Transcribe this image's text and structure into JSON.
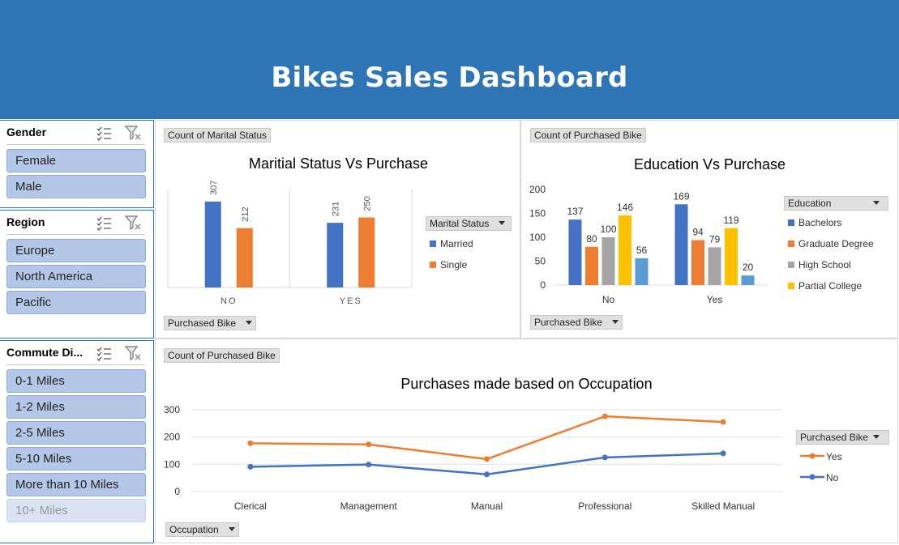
{
  "dashboard": {
    "title": "Bikes Sales Dashboard"
  },
  "slicers": {
    "gender": {
      "label": "Gender",
      "items": [
        "Female",
        "Male"
      ]
    },
    "region": {
      "label": "Region",
      "items": [
        "Europe",
        "North America",
        "Pacific"
      ]
    },
    "commute": {
      "label": "Commute Di...",
      "items": [
        "0-1 Miles",
        "1-2 Miles",
        "2-5 Miles",
        "5-10 Miles",
        "More than 10 Miles",
        "10+ Miles"
      ]
    }
  },
  "colors": {
    "banner": "#2e75b6",
    "married": "#4472c4",
    "single": "#ed7d31",
    "bachelors": "#4472c4",
    "graduate": "#ed7d31",
    "highschool": "#a5a5a5",
    "partial": "#ffc000",
    "partialhs": "#5b9bd5"
  },
  "chart_data": [
    {
      "type": "bar",
      "title": "Maritial Status Vs Purchase",
      "value_field": "Count of Marital Status",
      "axis_field": "Purchased Bike",
      "legend_title": "Marital Status",
      "legend_placement": "right",
      "categories": [
        "NO",
        "YES"
      ],
      "series": [
        {
          "name": "Married",
          "values": [
            307,
            231
          ]
        },
        {
          "name": "Single",
          "values": [
            212,
            250
          ]
        }
      ],
      "ylim": [
        0,
        350
      ],
      "grid": false
    },
    {
      "type": "bar",
      "title": "Education Vs Purchase",
      "value_field": "Count of Purchased Bike",
      "axis_field": "Purchased Bike",
      "legend_title": "Education",
      "legend_placement": "right",
      "categories": [
        "No",
        "Yes"
      ],
      "series": [
        {
          "name": "Bachelors",
          "values": [
            137,
            169
          ]
        },
        {
          "name": "Graduate Degree",
          "values": [
            80,
            94
          ]
        },
        {
          "name": "High School",
          "values": [
            100,
            79
          ]
        },
        {
          "name": "Partial College",
          "values": [
            146,
            119
          ]
        },
        {
          "name": "",
          "values": [
            56,
            20
          ]
        }
      ],
      "yticks": [
        "0",
        "50",
        "100",
        "150",
        "200"
      ],
      "ylim": [
        0,
        200
      ],
      "grid": false
    },
    {
      "type": "line",
      "title": "Purchases made based on Occupation",
      "value_field": "Count of Purchased Bike",
      "axis_field": "Occupation",
      "legend_title": "Purchased Bike",
      "legend_placement": "right",
      "categories": [
        "Clerical",
        "Management",
        "Manual",
        "Professional",
        "Skilled Manual"
      ],
      "series": [
        {
          "name": "Yes",
          "values": [
            177,
            173,
            119,
            276,
            255
          ]
        },
        {
          "name": "No",
          "values": [
            91,
            99,
            63,
            125,
            140
          ]
        }
      ],
      "yticks": [
        "0",
        "100",
        "200",
        "300"
      ],
      "ylim": [
        0,
        300
      ],
      "grid": true
    }
  ]
}
